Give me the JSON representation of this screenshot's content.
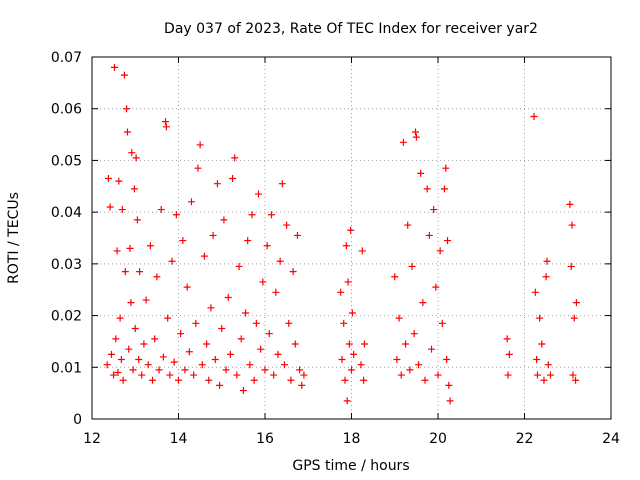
{
  "chart_data": {
    "type": "scatter",
    "title": "Day 037 of 2023, Rate Of TEC Index for receiver yar2",
    "xlabel": "GPS time / hours",
    "ylabel": "ROTI / TECUs",
    "xlim": [
      12,
      24
    ],
    "ylim": [
      0,
      0.07
    ],
    "xticks": [
      12,
      14,
      16,
      18,
      20,
      22,
      24
    ],
    "xtick_labels": [
      "12",
      "14",
      "16",
      "18",
      "20",
      "22",
      "24"
    ],
    "yticks": [
      0,
      0.01,
      0.02,
      0.03,
      0.04,
      0.05,
      0.06,
      0.07
    ],
    "ytick_labels": [
      "0",
      "0.01",
      "0.02",
      "0.03",
      "0.04",
      "0.05",
      "0.06",
      "0.07"
    ],
    "grid": true,
    "legend": "none",
    "marker": "plus",
    "color": "#ff0000",
    "series": [
      {
        "points": [
          [
            12.35,
            0.0105
          ],
          [
            12.38,
            0.0465
          ],
          [
            12.42,
            0.041
          ],
          [
            12.45,
            0.0125
          ],
          [
            12.5,
            0.0085
          ],
          [
            12.52,
            0.068
          ],
          [
            12.55,
            0.0155
          ],
          [
            12.58,
            0.0325
          ],
          [
            12.6,
            0.009
          ],
          [
            12.62,
            0.046
          ],
          [
            12.65,
            0.0195
          ],
          [
            12.68,
            0.0115
          ],
          [
            12.7,
            0.0405
          ],
          [
            12.72,
            0.0075
          ],
          [
            12.75,
            0.0665
          ],
          [
            12.77,
            0.0285
          ],
          [
            12.8,
            0.06
          ],
          [
            12.82,
            0.0555
          ],
          [
            12.85,
            0.0135
          ],
          [
            12.88,
            0.033
          ],
          [
            12.9,
            0.0225
          ],
          [
            12.92,
            0.0515
          ],
          [
            12.95,
            0.0095
          ],
          [
            12.98,
            0.0445
          ],
          [
            13.0,
            0.0175
          ],
          [
            13.02,
            0.0505
          ],
          [
            13.05,
            0.0385
          ],
          [
            13.08,
            0.0115
          ],
          [
            13.1,
            0.0285
          ],
          [
            13.15,
            0.0085
          ],
          [
            13.2,
            0.0145
          ],
          [
            13.25,
            0.023
          ],
          [
            13.3,
            0.0105
          ],
          [
            13.35,
            0.0335
          ],
          [
            13.4,
            0.0075
          ],
          [
            13.45,
            0.0155
          ],
          [
            13.5,
            0.0275
          ],
          [
            13.55,
            0.0095
          ],
          [
            13.6,
            0.0405
          ],
          [
            13.65,
            0.012
          ],
          [
            13.7,
            0.0575
          ],
          [
            13.72,
            0.0565
          ],
          [
            13.75,
            0.0195
          ],
          [
            13.8,
            0.0085
          ],
          [
            13.85,
            0.0305
          ],
          [
            13.9,
            0.011
          ],
          [
            13.95,
            0.0395
          ],
          [
            14.0,
            0.0075
          ],
          [
            14.05,
            0.0165
          ],
          [
            14.1,
            0.0345
          ],
          [
            14.15,
            0.0095
          ],
          [
            14.2,
            0.0255
          ],
          [
            14.25,
            0.013
          ],
          [
            14.3,
            0.042
          ],
          [
            14.35,
            0.0085
          ],
          [
            14.4,
            0.0185
          ],
          [
            14.45,
            0.0485
          ],
          [
            14.5,
            0.053
          ],
          [
            14.55,
            0.0105
          ],
          [
            14.6,
            0.0315
          ],
          [
            14.65,
            0.0145
          ],
          [
            14.7,
            0.0075
          ],
          [
            14.75,
            0.0215
          ],
          [
            14.8,
            0.0355
          ],
          [
            14.85,
            0.0115
          ],
          [
            14.9,
            0.0455
          ],
          [
            14.95,
            0.0065
          ],
          [
            15.0,
            0.0175
          ],
          [
            15.05,
            0.0385
          ],
          [
            15.1,
            0.0095
          ],
          [
            15.15,
            0.0235
          ],
          [
            15.2,
            0.0125
          ],
          [
            15.25,
            0.0465
          ],
          [
            15.3,
            0.0505
          ],
          [
            15.35,
            0.0085
          ],
          [
            15.4,
            0.0295
          ],
          [
            15.45,
            0.0155
          ],
          [
            15.5,
            0.0055
          ],
          [
            15.55,
            0.0205
          ],
          [
            15.6,
            0.0345
          ],
          [
            15.65,
            0.0105
          ],
          [
            15.7,
            0.0395
          ],
          [
            15.75,
            0.0075
          ],
          [
            15.8,
            0.0185
          ],
          [
            15.85,
            0.0435
          ],
          [
            15.9,
            0.0135
          ],
          [
            15.95,
            0.0265
          ],
          [
            16.0,
            0.0095
          ],
          [
            16.05,
            0.0335
          ],
          [
            16.1,
            0.0165
          ],
          [
            16.15,
            0.0395
          ],
          [
            16.2,
            0.0085
          ],
          [
            16.25,
            0.0245
          ],
          [
            16.3,
            0.0125
          ],
          [
            16.35,
            0.0305
          ],
          [
            16.4,
            0.0455
          ],
          [
            16.45,
            0.0105
          ],
          [
            16.5,
            0.0375
          ],
          [
            16.55,
            0.0185
          ],
          [
            16.6,
            0.0075
          ],
          [
            16.65,
            0.0285
          ],
          [
            16.7,
            0.0145
          ],
          [
            16.75,
            0.0355
          ],
          [
            16.8,
            0.0095
          ],
          [
            16.85,
            0.0065
          ],
          [
            16.9,
            0.0085
          ],
          [
            17.75,
            0.0245
          ],
          [
            17.78,
            0.0115
          ],
          [
            17.82,
            0.0185
          ],
          [
            17.85,
            0.0075
          ],
          [
            17.88,
            0.0335
          ],
          [
            17.9,
            0.0035
          ],
          [
            17.92,
            0.0265
          ],
          [
            17.95,
            0.0145
          ],
          [
            17.98,
            0.0365
          ],
          [
            18.0,
            0.0095
          ],
          [
            18.02,
            0.0205
          ],
          [
            18.05,
            0.0125
          ],
          [
            18.22,
            0.0105
          ],
          [
            18.25,
            0.0325
          ],
          [
            18.28,
            0.0075
          ],
          [
            18.3,
            0.0145
          ],
          [
            19.0,
            0.0275
          ],
          [
            19.05,
            0.0115
          ],
          [
            19.1,
            0.0195
          ],
          [
            19.15,
            0.0085
          ],
          [
            19.2,
            0.0535
          ],
          [
            19.25,
            0.0145
          ],
          [
            19.3,
            0.0375
          ],
          [
            19.35,
            0.0095
          ],
          [
            19.4,
            0.0295
          ],
          [
            19.45,
            0.0165
          ],
          [
            19.48,
            0.0555
          ],
          [
            19.5,
            0.0545
          ],
          [
            19.55,
            0.0105
          ],
          [
            19.6,
            0.0475
          ],
          [
            19.65,
            0.0225
          ],
          [
            19.7,
            0.0075
          ],
          [
            19.75,
            0.0445
          ],
          [
            19.8,
            0.0355
          ],
          [
            19.85,
            0.0135
          ],
          [
            19.9,
            0.0405
          ],
          [
            19.95,
            0.0255
          ],
          [
            20.0,
            0.0085
          ],
          [
            20.05,
            0.0325
          ],
          [
            20.1,
            0.0185
          ],
          [
            20.15,
            0.0445
          ],
          [
            20.18,
            0.0485
          ],
          [
            20.2,
            0.0115
          ],
          [
            20.22,
            0.0345
          ],
          [
            20.25,
            0.0065
          ],
          [
            20.28,
            0.0035
          ],
          [
            21.6,
            0.0155
          ],
          [
            21.62,
            0.0085
          ],
          [
            21.65,
            0.0125
          ],
          [
            22.22,
            0.0585
          ],
          [
            22.25,
            0.0245
          ],
          [
            22.28,
            0.0115
          ],
          [
            22.3,
            0.0085
          ],
          [
            22.35,
            0.0195
          ],
          [
            22.4,
            0.0145
          ],
          [
            22.45,
            0.0075
          ],
          [
            22.5,
            0.0275
          ],
          [
            22.52,
            0.0305
          ],
          [
            22.55,
            0.0105
          ],
          [
            22.6,
            0.0085
          ],
          [
            23.05,
            0.0415
          ],
          [
            23.08,
            0.0295
          ],
          [
            23.1,
            0.0375
          ],
          [
            23.12,
            0.0085
          ],
          [
            23.15,
            0.0195
          ],
          [
            23.18,
            0.0075
          ],
          [
            23.2,
            0.0225
          ]
        ]
      }
    ]
  }
}
